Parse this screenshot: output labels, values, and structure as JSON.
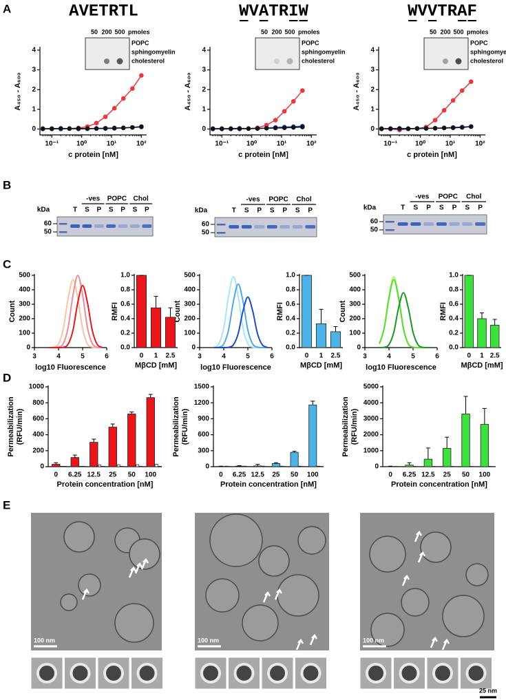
{
  "figure": {
    "panels": [
      "A",
      "B",
      "C",
      "D",
      "E"
    ],
    "dot_blots": [
      {
        "amounts": [
          50,
          200,
          500
        ],
        "unit": "pmoles",
        "lipids": [
          "POPC",
          "sphingomyelin",
          "cholesterol"
        ]
      },
      {
        "amounts": [
          50,
          200,
          500
        ],
        "unit": "pmoles",
        "lipids": [
          "POPC",
          "sphingomyelin",
          "cholesterol"
        ]
      },
      {
        "amounts": [
          50,
          200,
          500
        ],
        "unit": "pmoles",
        "lipids": [
          "POPC",
          "sphingomyelin",
          "cholesterol"
        ]
      }
    ],
    "gels": [
      {
        "ladder_label": "kDa",
        "ladder": [
          60,
          50
        ],
        "lanes": [
          "T",
          "S",
          "P",
          "S",
          "P",
          "S",
          "P"
        ],
        "groups": [
          "-ves",
          "POPC",
          "Chol"
        ]
      },
      {
        "ladder_label": "kDa",
        "ladder": [
          60,
          50
        ],
        "lanes": [
          "T",
          "S",
          "P",
          "S",
          "P",
          "S",
          "P"
        ],
        "groups": [
          "-ves",
          "POPC",
          "Chol"
        ]
      },
      {
        "ladder_label": "kDa",
        "ladder": [
          60,
          50
        ],
        "lanes": [
          "T",
          "S",
          "P",
          "S",
          "P",
          "S",
          "P"
        ],
        "groups": [
          "-ves",
          "POPC",
          "Chol"
        ]
      }
    ],
    "micrographs": [
      {
        "scale": "100 nm"
      },
      {
        "scale": "100 nm"
      },
      {
        "scale": "100 nm"
      }
    ],
    "thumb_scale": "25 nm"
  },
  "chart_data": [
    {
      "type": "line",
      "title": "AVETRTL",
      "xscale": "log",
      "markers": true,
      "x": [
        0.05,
        0.1,
        0.2,
        0.39,
        0.78,
        1.56,
        3.13,
        6.25,
        12.5,
        25,
        50,
        100
      ],
      "xlim": [
        0.04,
        150
      ],
      "xticks": [
        {
          "value": 0.1,
          "label": "10⁻¹"
        },
        {
          "value": 1,
          "label": "10⁰"
        },
        {
          "value": 10,
          "label": "10¹"
        },
        {
          "value": 100,
          "label": "10²"
        }
      ],
      "ylim": [
        -0.3,
        4.1
      ],
      "yticks": [
        0,
        1,
        2,
        3,
        4
      ],
      "xlabel": "c protein [nM]",
      "ylabel": "A₄₅₀ - A₆₀₀",
      "series": [
        {
          "color": "#e8383d",
          "values": [
            0,
            0,
            0.01,
            0.02,
            0.05,
            0.12,
            0.3,
            0.62,
            1.05,
            1.55,
            2.05,
            2.72
          ]
        },
        {
          "color": "#2b4bdc",
          "values": [
            0,
            0.01,
            0,
            0.02,
            0,
            0.01,
            0.02,
            0.02,
            0.03,
            0.05,
            0.08,
            0.1
          ]
        },
        {
          "color": "#111111",
          "values": [
            0.02,
            0.02,
            0.03,
            0.02,
            0.03,
            0.02,
            0.03,
            0.04,
            0.05,
            0.06,
            0.08,
            0.12
          ]
        }
      ]
    },
    {
      "type": "line",
      "title": "WVATRIW",
      "xscale": "log",
      "markers": true,
      "x": [
        0.05,
        0.1,
        0.2,
        0.39,
        0.78,
        1.56,
        3.13,
        6.25,
        12.5,
        25,
        50
      ],
      "xlim": [
        0.04,
        150
      ],
      "xticks": [
        {
          "value": 0.1,
          "label": "10⁻¹"
        },
        {
          "value": 1,
          "label": "10⁰"
        },
        {
          "value": 10,
          "label": "10¹"
        },
        {
          "value": 100,
          "label": "10²"
        }
      ],
      "ylim": [
        -0.3,
        4.1
      ],
      "yticks": [
        0,
        1,
        2,
        3,
        4
      ],
      "xlabel": "c protein [nM]",
      "ylabel": "A₄₅₀ - A₆₀₀",
      "series": [
        {
          "color": "#e8383d",
          "values": [
            0,
            0,
            0,
            0.01,
            0.02,
            0.06,
            0.2,
            0.45,
            0.9,
            1.4,
            1.95
          ]
        },
        {
          "color": "#2b4bdc",
          "values": [
            0,
            0,
            0.01,
            0,
            0.02,
            0.02,
            0.05,
            0.08,
            0.1,
            0.12,
            0.15
          ]
        },
        {
          "color": "#111111",
          "values": [
            0.02,
            0.02,
            0.02,
            0.03,
            0.02,
            0.03,
            0.04,
            0.05,
            0.06,
            0.08,
            0.1
          ]
        }
      ]
    },
    {
      "type": "line",
      "title": "WVVTRAF",
      "xscale": "log",
      "markers": true,
      "x": [
        0.05,
        0.1,
        0.2,
        0.39,
        0.78,
        1.56,
        3.13,
        6.25,
        12.5,
        25,
        50
      ],
      "xlim": [
        0.04,
        150
      ],
      "xticks": [
        {
          "value": 0.1,
          "label": "10⁻¹"
        },
        {
          "value": 1,
          "label": "10⁰"
        },
        {
          "value": 10,
          "label": "10¹"
        },
        {
          "value": 100,
          "label": "10²"
        }
      ],
      "ylim": [
        -0.3,
        4.1
      ],
      "yticks": [
        0,
        1,
        2,
        3,
        4
      ],
      "xlabel": "c protein [nM]",
      "ylabel": "A₄₅₀ - A₆₀₀",
      "series": [
        {
          "color": "#e8383d",
          "values": [
            0,
            0,
            -0.05,
            0,
            0.02,
            0.1,
            0.45,
            0.95,
            1.45,
            1.95,
            2.4
          ]
        },
        {
          "color": "#2b4bdc",
          "values": [
            0,
            0.01,
            0,
            0.01,
            0.02,
            0.03,
            0.04,
            0.06,
            0.08,
            0.1,
            0.12
          ]
        },
        {
          "color": "#111111",
          "values": [
            0.02,
            0.02,
            0.03,
            0.02,
            0.03,
            0.03,
            0.04,
            0.05,
            0.06,
            0.08,
            0.12
          ]
        }
      ]
    },
    {
      "type": "line",
      "smooth": true,
      "x": [
        3.6,
        3.8,
        4.0,
        4.2,
        4.4,
        4.6,
        4.8,
        5.0,
        5.2,
        5.4,
        5.6,
        5.8
      ],
      "xlim": [
        3,
        6
      ],
      "xticks": [
        3,
        4,
        5,
        6
      ],
      "ylim": [
        0,
        500
      ],
      "yticks": [
        0,
        100,
        200,
        300,
        400,
        500
      ],
      "xlabel": "log10 Fluorescence",
      "ylabel": "Count",
      "series": [
        {
          "color": "#f8c4a4",
          "values": [
            0,
            3,
            26,
            131,
            341,
            470,
            341,
            131,
            26,
            3,
            0,
            0
          ]
        },
        {
          "color": "#f28a96",
          "values": [
            0,
            0,
            3,
            28,
            139,
            363,
            500,
            363,
            139,
            28,
            3,
            0
          ]
        },
        {
          "color": "#e8161b",
          "values": [
            0,
            0,
            0,
            2,
            24,
            120,
            312,
            430,
            312,
            120,
            24,
            2
          ]
        }
      ]
    },
    {
      "type": "line",
      "smooth": true,
      "x": [
        3.6,
        3.8,
        4.0,
        4.2,
        4.4,
        4.6,
        4.8,
        5.0,
        5.2,
        5.4,
        5.6,
        5.8
      ],
      "xlim": [
        3,
        6
      ],
      "xticks": [
        3,
        4,
        5,
        6
      ],
      "ylim": [
        0,
        500
      ],
      "yticks": [
        0,
        100,
        200,
        300,
        400,
        500
      ],
      "xlabel": "log10 Fluorescence",
      "ylabel": "Count",
      "series": [
        {
          "color": "#a6e6f4",
          "values": [
            3,
            27,
            136,
            356,
            490,
            356,
            136,
            27,
            3,
            0,
            0,
            0
          ]
        },
        {
          "color": "#4fa8ee",
          "values": [
            0,
            3,
            25,
            122,
            319,
            440,
            319,
            122,
            25,
            3,
            0,
            0
          ]
        },
        {
          "color": "#1f48c8",
          "values": [
            0,
            0,
            0,
            2,
            19,
            97,
            254,
            350,
            254,
            97,
            19,
            2
          ]
        }
      ]
    },
    {
      "type": "line",
      "smooth": true,
      "x": [
        3.6,
        3.8,
        4.0,
        4.2,
        4.4,
        4.6,
        4.8,
        5.0,
        5.2,
        5.4,
        5.6,
        5.8
      ],
      "xlim": [
        3,
        6
      ],
      "xticks": [
        3,
        4,
        5,
        6
      ],
      "ylim": [
        0,
        500
      ],
      "yticks": [
        0,
        100,
        200,
        300,
        400,
        500
      ],
      "xlabel": "log10 Fluorescence",
      "ylabel": "Count",
      "series": [
        {
          "color": "#b4f27a",
          "values": [
            27,
            136,
            356,
            490,
            356,
            136,
            27,
            3,
            0,
            0,
            0,
            0
          ]
        },
        {
          "color": "#55dd30",
          "values": [
            26,
            131,
            341,
            470,
            341,
            131,
            26,
            3,
            0,
            0,
            0,
            0
          ]
        },
        {
          "color": "#1a9422",
          "values": [
            0,
            2,
            21,
            106,
            276,
            380,
            276,
            106,
            21,
            2,
            0,
            0
          ]
        }
      ]
    },
    {
      "type": "bar",
      "categories": [
        "0",
        "1",
        "2.5"
      ],
      "ylim": [
        0,
        1.0
      ],
      "yticks": [
        {
          "value": 0,
          "label": "0.0"
        },
        {
          "value": 0.2,
          "label": "0.2"
        },
        {
          "value": 0.4,
          "label": "0.4"
        },
        {
          "value": 0.6,
          "label": "0.6"
        },
        {
          "value": 0.8,
          "label": "0.8"
        },
        {
          "value": 1,
          "label": "1.0"
        }
      ],
      "xlabel": "MβCD [mM]",
      "ylabel": "RMFI",
      "series": [
        {
          "color": "#e8161b",
          "values": [
            1.0,
            0.55,
            0.42
          ],
          "errors": [
            0,
            0.16,
            0.13
          ]
        }
      ]
    },
    {
      "type": "bar",
      "categories": [
        "0",
        "1",
        "2.5"
      ],
      "ylim": [
        0,
        1.0
      ],
      "yticks": [
        {
          "value": 0,
          "label": "0.0"
        },
        {
          "value": 0.2,
          "label": "0.2"
        },
        {
          "value": 0.4,
          "label": "0.4"
        },
        {
          "value": 0.6,
          "label": "0.6"
        },
        {
          "value": 0.8,
          "label": "0.8"
        },
        {
          "value": 1,
          "label": "1.0"
        }
      ],
      "xlabel": "MβCD [mM]",
      "ylabel": "RMFI",
      "series": [
        {
          "color": "#4db3e6",
          "values": [
            1.0,
            0.33,
            0.22
          ],
          "errors": [
            0,
            0.2,
            0.07
          ]
        }
      ]
    },
    {
      "type": "bar",
      "categories": [
        "0",
        "1",
        "2.5"
      ],
      "ylim": [
        0,
        1.0
      ],
      "yticks": [
        {
          "value": 0,
          "label": "0.0"
        },
        {
          "value": 0.2,
          "label": "0.2"
        },
        {
          "value": 0.4,
          "label": "0.4"
        },
        {
          "value": 0.6,
          "label": "0.6"
        },
        {
          "value": 0.8,
          "label": "0.8"
        },
        {
          "value": 1,
          "label": "1.0"
        }
      ],
      "xlabel": "MβCD [mM]",
      "ylabel": "RMFI",
      "series": [
        {
          "color": "#3ee03e",
          "values": [
            1.0,
            0.4,
            0.31
          ],
          "errors": [
            0,
            0.08,
            0.08
          ]
        }
      ]
    },
    {
      "type": "bar",
      "categories": [
        "0",
        "6.25",
        "12.5",
        "25",
        "50",
        "100"
      ],
      "ylim": [
        0,
        1000
      ],
      "yticks": [
        0,
        200,
        400,
        600,
        800,
        1000
      ],
      "xlabel": "Protein concentration [nM]",
      "ylabel": [
        "Permeabilization",
        "(RFU/min)"
      ],
      "series": [
        {
          "color": "#e8161b",
          "values": [
            30,
            115,
            305,
            495,
            660,
            865
          ],
          "errors": [
            20,
            30,
            40,
            40,
            25,
            40
          ]
        },
        {
          "color": "#ffffff",
          "values": [
            5,
            5,
            20,
            25,
            25,
            30
          ]
        },
        {
          "color": "#ffffff",
          "values": [
            5,
            5,
            5,
            5,
            5,
            5
          ]
        }
      ]
    },
    {
      "type": "bar",
      "categories": [
        "0",
        "6.25",
        "12.5",
        "25",
        "50",
        "100"
      ],
      "ylim": [
        0,
        1500
      ],
      "yticks": [
        0,
        300,
        600,
        900,
        1200,
        1500
      ],
      "xlabel": "Protein concentration [nM]",
      "ylabel": [
        "Permeabilization",
        "(RFU/min)"
      ],
      "series": [
        {
          "color": "#4db3e6",
          "values": [
            5,
            10,
            15,
            60,
            270,
            1160
          ],
          "errors": [
            5,
            10,
            30,
            15,
            20,
            70
          ]
        },
        {
          "color": "#ffffff",
          "values": [
            10,
            10,
            10,
            10,
            10,
            10
          ]
        },
        {
          "color": "#ffffff",
          "values": [
            5,
            5,
            5,
            5,
            5,
            5
          ]
        }
      ]
    },
    {
      "type": "bar",
      "categories": [
        "0",
        "6.25",
        "12.5",
        "25",
        "50",
        "100"
      ],
      "ylim": [
        0,
        5000
      ],
      "yticks": [
        0,
        1000,
        2000,
        3000,
        4000,
        5000
      ],
      "xlabel": "Protein concentration [nM]",
      "ylabel": [
        "Permeabilization",
        "(RFU/min)"
      ],
      "series": [
        {
          "color": "#3ee03e",
          "values": [
            10,
            100,
            470,
            1150,
            3300,
            2650
          ],
          "errors": [
            20,
            150,
            700,
            700,
            1100,
            1000
          ]
        },
        {
          "color": "#ffffff",
          "values": [
            20,
            20,
            20,
            20,
            20,
            20
          ]
        },
        {
          "color": "#ffffff",
          "values": [
            10,
            10,
            10,
            10,
            10,
            10
          ]
        }
      ]
    }
  ]
}
